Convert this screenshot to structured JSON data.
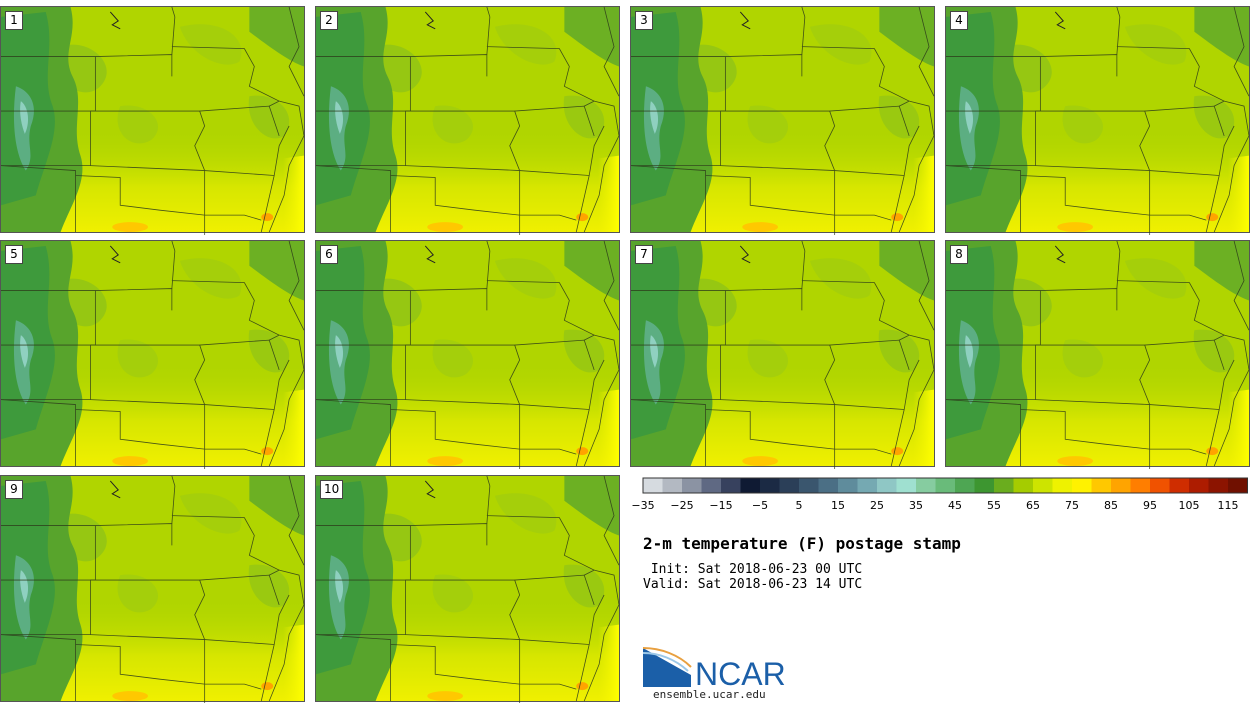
{
  "header": {
    "title": "2-m temperature (F) postage stamp",
    "init_line": " Init: Sat 2018-06-23 00 UTC",
    "valid_line": "Valid: Sat 2018-06-23 14 UTC"
  },
  "members": [
    "1",
    "2",
    "3",
    "4",
    "5",
    "6",
    "7",
    "8",
    "9",
    "10"
  ],
  "colorbar": {
    "colors": [
      "#d6dbe0",
      "#b3b9c2",
      "#8b93a3",
      "#5f6983",
      "#37415e",
      "#0f1a33",
      "#1b2a44",
      "#2b3f58",
      "#3a566e",
      "#4b6f85",
      "#5f8c9c",
      "#75a9b2",
      "#8fc7c5",
      "#9fe0d0",
      "#86cca0",
      "#69bb7a",
      "#4ea653",
      "#3d9630",
      "#6aad1e",
      "#a5cc00",
      "#cde400",
      "#eef200",
      "#fff200",
      "#ffc800",
      "#ffa400",
      "#ff7e00",
      "#f05200",
      "#cf2d00",
      "#ad1c00",
      "#8c1400",
      "#701000"
    ],
    "tick_labels": [
      "−35",
      "−25",
      "−15",
      "−5",
      "5",
      "15",
      "25",
      "35",
      "45",
      "55",
      "65",
      "75",
      "85",
      "95",
      "105",
      "115"
    ]
  },
  "logo": {
    "text": "NCAR",
    "url": "ensemble.ucar.edu"
  }
}
